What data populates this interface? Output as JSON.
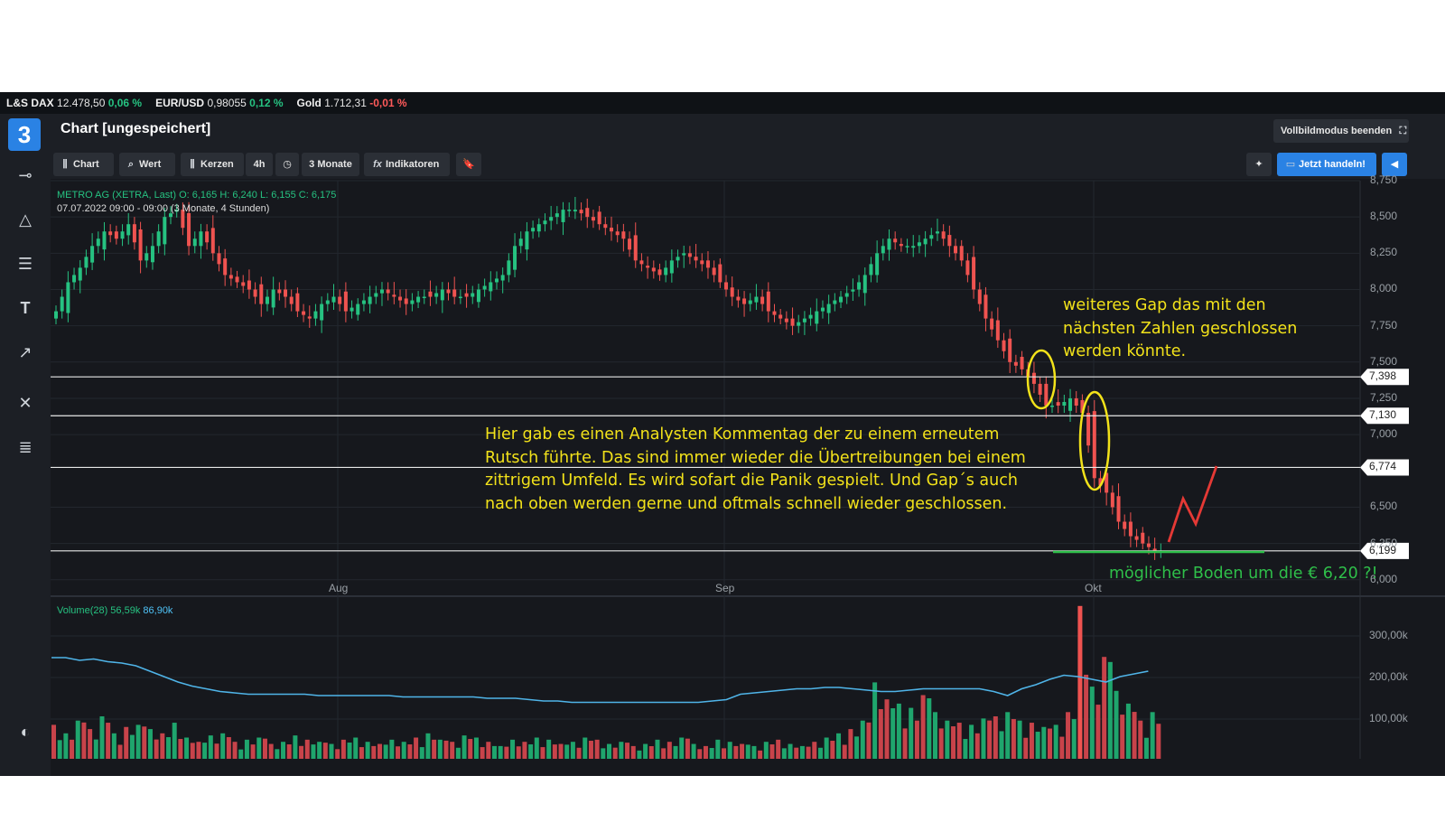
{
  "ticker": [
    {
      "name": "L&S DAX",
      "value": "12.478,50",
      "change": "0,06 %",
      "dir": "up"
    },
    {
      "name": "EUR/USD",
      "value": "0,98055",
      "change": "0,12 %",
      "dir": "up"
    },
    {
      "name": "Gold",
      "value": "1.712,31",
      "change": "-0,01 %",
      "dir": "dn"
    }
  ],
  "header": {
    "title": "Chart [ungespeichert]",
    "fullscreen_label": "Vollbildmodus beenden"
  },
  "toolbar": {
    "chart_label": "Chart",
    "wert_label": "Wert",
    "kerzen_label": "Kerzen",
    "interval_label": "4h",
    "range_label": "3 Monate",
    "indicators_label": "Indikatoren",
    "trade_label": "Jetzt handeln!"
  },
  "sidebar_icons": [
    "crosshair-icon",
    "triangle-icon",
    "lines-icon",
    "text-icon",
    "arrow-icon",
    "tools-icon",
    "list-icon",
    "contrast-icon"
  ],
  "chart_info": {
    "line1": "METRO AG (XETRA, Last)  O: 6,165  H: 6,240  L: 6,155  C: 6,175",
    "line2": "07.07.2022 09:00 - 09:00  (3 Monate, 4 Stunden)"
  },
  "volume_legend": {
    "label": "Volume(28)  56,59k",
    "value": "86,90k"
  },
  "annotations": {
    "gap_note": "weiteres Gap das mit den nächsten Zahlen geschlossen werden könnte.",
    "analyst_note": "Hier gab es einen Analysten Kommentag der zu einem erneutem Rutsch führte. Das sind immer wieder die Übertreibungen bei einem zittrigem Umfeld. Es wird sofart die Panik gespielt. Und Gap´s auch nach oben werden gerne und oftmals schnell wieder geschlossen.",
    "support_note": "möglicher Boden um die € 6,20 ?!"
  },
  "price_labels": [
    "7,398",
    "7,130",
    "6,774",
    "6,199"
  ],
  "colors": {
    "up": "#26c281",
    "down": "#ef5350",
    "accent": "#2a82e4",
    "annotation": "#f2e21a",
    "support": "#2fbf4a",
    "arrow": "#e53935"
  },
  "chart_data": {
    "type": "candlestick",
    "symbol": "METRO AG (XETRA, Last)",
    "x_labels": [
      "Aug",
      "Sep",
      "Okt"
    ],
    "y_ticks": [
      "8,750",
      "8,500",
      "8,250",
      "8,000",
      "7,750",
      "7,500",
      "7,250",
      "7,000",
      "6,500",
      "6,250",
      "6,000"
    ],
    "ylim": [
      5.98,
      8.75
    ],
    "volume_ticks": [
      "300,00k",
      "200,00k",
      "100,00k"
    ],
    "horizontal_lines": [
      7.398,
      7.13,
      6.774,
      6.199
    ],
    "support_level": 6.15,
    "close_path": [
      7.85,
      8.05,
      8.15,
      8.3,
      8.4,
      8.35,
      8.45,
      8.2,
      8.3,
      8.5,
      8.55,
      8.3,
      8.4,
      8.25,
      8.1,
      8.05,
      8.0,
      7.9,
      8.0,
      7.95,
      7.85,
      7.8,
      7.9,
      7.95,
      7.85,
      7.9,
      7.95,
      8.0,
      7.95,
      7.9,
      7.95,
      7.95,
      8.0,
      7.95,
      7.95,
      8.0,
      8.05,
      8.1,
      8.3,
      8.4,
      8.45,
      8.5,
      8.55,
      8.55,
      8.5,
      8.45,
      8.4,
      8.35,
      8.2,
      8.15,
      8.1,
      8.2,
      8.25,
      8.2,
      8.15,
      8.05,
      7.95,
      7.9,
      7.95,
      7.85,
      7.8,
      7.75,
      7.8,
      7.85,
      7.9,
      7.95,
      8.0,
      8.1,
      8.25,
      8.35,
      8.3,
      8.3,
      8.35,
      8.4,
      8.3,
      8.2,
      8.0,
      7.8,
      7.65,
      7.5,
      7.45,
      7.35,
      7.2,
      7.2,
      7.25,
      7.15,
      6.7,
      6.6,
      6.4,
      6.3,
      6.25,
      6.2
    ],
    "volume_path": [
      80,
      60,
      90,
      70,
      100,
      60,
      75,
      80,
      70,
      60,
      85,
      50,
      40,
      55,
      60,
      40,
      45,
      50,
      35,
      40,
      55,
      45,
      40,
      35,
      45,
      50,
      40,
      35,
      45,
      40,
      50,
      60,
      45,
      40,
      55,
      50,
      40,
      30,
      45,
      40,
      50,
      45,
      35,
      40,
      50,
      45,
      35,
      40,
      30,
      35,
      45,
      40,
      50,
      35,
      30,
      45,
      40,
      35,
      30,
      40,
      45,
      35,
      30,
      40,
      50,
      60,
      70,
      90,
      180,
      140,
      130,
      120,
      150,
      110,
      90,
      85,
      80,
      95,
      100,
      110,
      90,
      85,
      75,
      80,
      110,
      360,
      170,
      240,
      160,
      130,
      90,
      110
    ]
  }
}
